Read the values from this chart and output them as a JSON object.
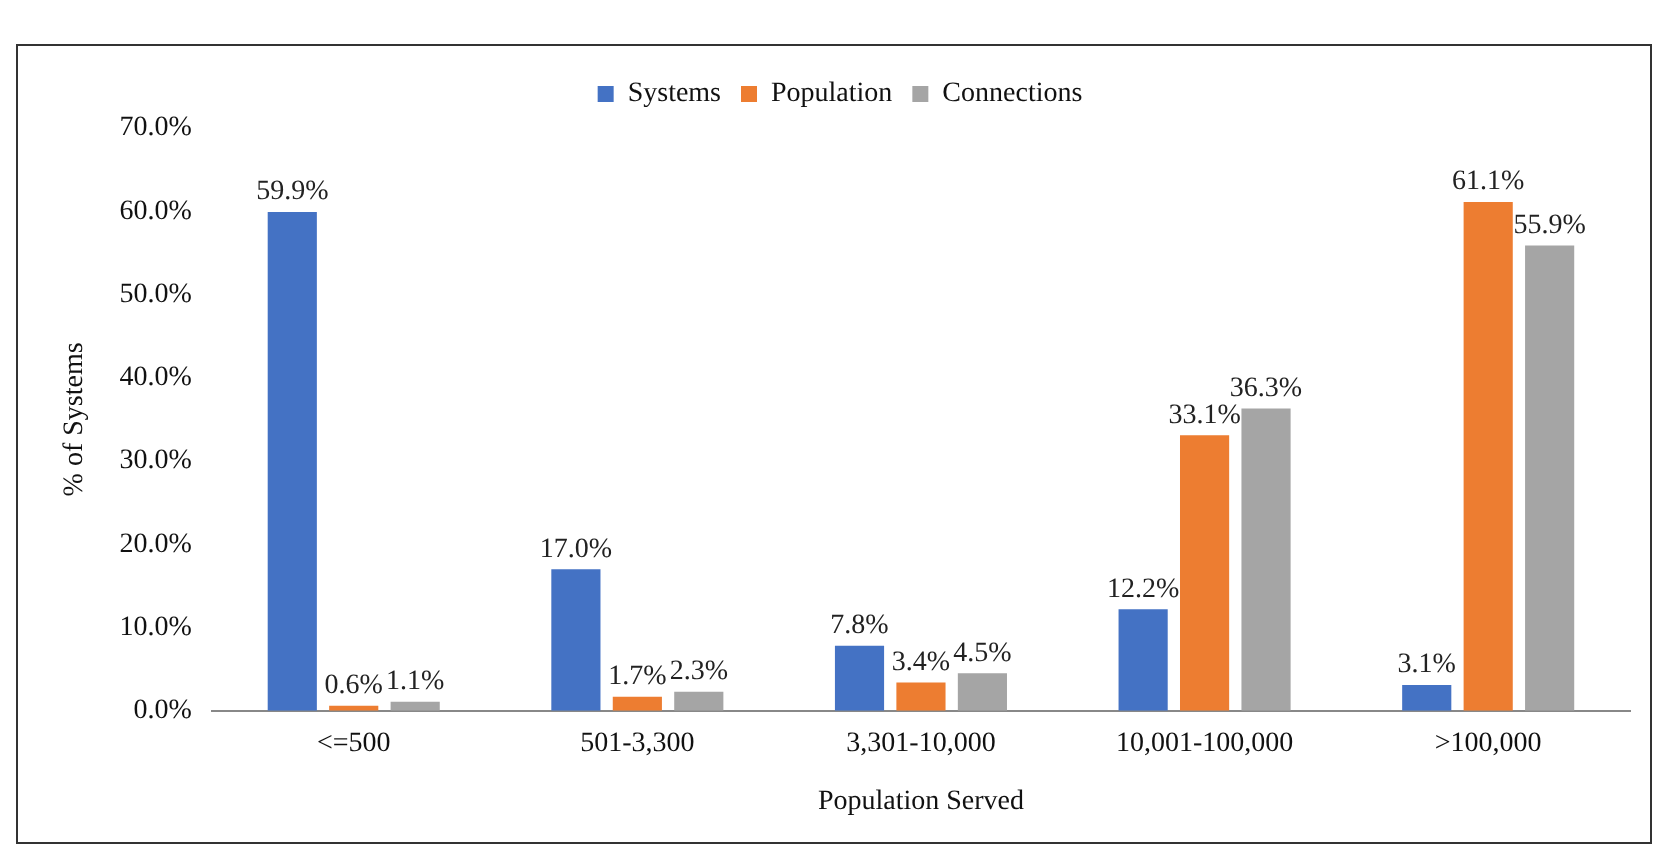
{
  "chart_data": {
    "type": "bar",
    "xlabel": "Population Served",
    "ylabel": "% of Systems",
    "categories": [
      "<=500",
      "501-3,300",
      "3,301-10,000",
      "10,001-100,000",
      ">100,000"
    ],
    "series": [
      {
        "name": "Systems",
        "color": "#4472c4",
        "values": [
          59.9,
          17.0,
          7.8,
          12.2,
          3.1
        ],
        "value_labels": [
          "59.9%",
          "17.0%",
          "7.8%",
          "12.2%",
          "3.1%"
        ]
      },
      {
        "name": "Population",
        "color": "#ed7d31",
        "values": [
          0.6,
          1.7,
          3.4,
          33.1,
          61.1
        ],
        "value_labels": [
          "0.6%",
          "1.7%",
          "3.4%",
          "33.1%",
          "61.1%"
        ]
      },
      {
        "name": "Connections",
        "color": "#a5a5a5",
        "values": [
          1.1,
          2.3,
          4.5,
          36.3,
          55.9
        ],
        "value_labels": [
          "1.1%",
          "2.3%",
          "4.5%",
          "36.3%",
          "55.9%"
        ]
      }
    ],
    "ylim": [
      0,
      70
    ],
    "yticks": [
      {
        "value": 0,
        "label": "0.0%"
      },
      {
        "value": 10,
        "label": "10.0%"
      },
      {
        "value": 20,
        "label": "20.0%"
      },
      {
        "value": 30,
        "label": "30.0%"
      },
      {
        "value": 40,
        "label": "40.0%"
      },
      {
        "value": 50,
        "label": "50.0%"
      },
      {
        "value": 60,
        "label": "60.0%"
      },
      {
        "value": 70,
        "label": "70.0%"
      }
    ],
    "grid": false,
    "legend": "top"
  }
}
